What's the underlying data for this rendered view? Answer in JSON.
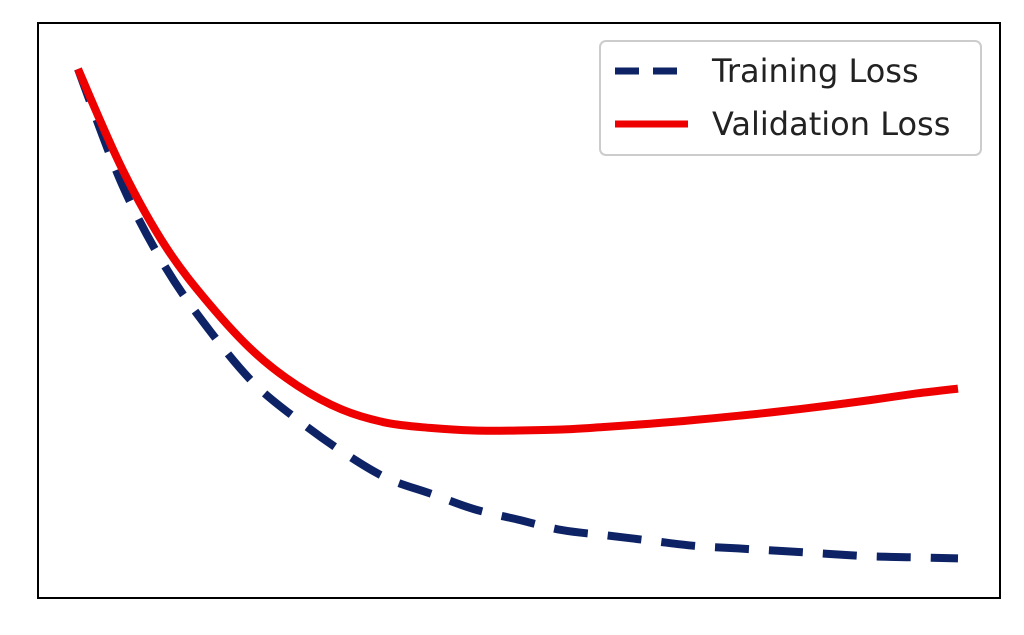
{
  "chart_data": {
    "type": "line",
    "title": "",
    "xlabel": "",
    "ylabel": "",
    "xlim": [
      0,
      1
    ],
    "ylim": [
      0,
      1
    ],
    "grid": false,
    "legend_position": "top-right",
    "x": [
      0,
      0.05,
      0.1,
      0.15,
      0.2,
      0.25,
      0.3,
      0.35,
      0.4,
      0.45,
      0.5,
      0.55,
      0.6,
      0.65,
      0.7,
      0.75,
      0.8,
      0.85,
      0.9,
      0.95,
      1.0
    ],
    "series": [
      {
        "name": "Training Loss",
        "color": "#0d2366",
        "style": "dashed",
        "values": [
          0.96,
          0.74,
          0.58,
          0.46,
          0.36,
          0.29,
          0.23,
          0.18,
          0.15,
          0.12,
          0.1,
          0.08,
          0.07,
          0.06,
          0.05,
          0.045,
          0.04,
          0.035,
          0.03,
          0.028,
          0.026
        ]
      },
      {
        "name": "Validation Loss",
        "color": "#ee0000",
        "style": "solid",
        "values": [
          0.96,
          0.77,
          0.62,
          0.51,
          0.42,
          0.355,
          0.31,
          0.285,
          0.275,
          0.27,
          0.27,
          0.272,
          0.277,
          0.283,
          0.29,
          0.298,
          0.307,
          0.317,
          0.328,
          0.34,
          0.35
        ]
      }
    ]
  }
}
